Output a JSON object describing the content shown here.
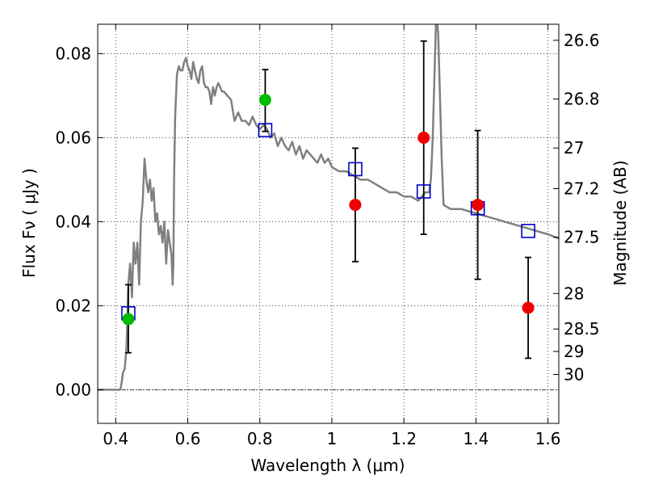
{
  "chart_data": {
    "type": "scatter",
    "xlabel": "Wavelength  λ (μm)",
    "ylabel": "Flux  Fν ( μJy )",
    "y2label": "Magnitude (AB)",
    "xlim": [
      0.35,
      1.63
    ],
    "ylim": [
      -0.008,
      0.087
    ],
    "grid": true,
    "x_ticks": [
      {
        "value": 0.4,
        "label": "0.4"
      },
      {
        "value": 0.6,
        "label": "0.6"
      },
      {
        "value": 0.8,
        "label": "0.8"
      },
      {
        "value": 1.0,
        "label": "1"
      },
      {
        "value": 1.2,
        "label": "1.2"
      },
      {
        "value": 1.4,
        "label": "1.4"
      },
      {
        "value": 1.6,
        "label": "1.6"
      }
    ],
    "y_ticks": [
      {
        "value": 0.0,
        "label": "0.00"
      },
      {
        "value": 0.02,
        "label": "0.02"
      },
      {
        "value": 0.04,
        "label": "0.04"
      },
      {
        "value": 0.06,
        "label": "0.06"
      },
      {
        "value": 0.08,
        "label": "0.08"
      }
    ],
    "mag_ticks": [
      {
        "mag": 26.6,
        "label": "26.6"
      },
      {
        "mag": 26.8,
        "label": "26.8"
      },
      {
        "mag": 27.0,
        "label": "27"
      },
      {
        "mag": 27.2,
        "label": "27.2"
      },
      {
        "mag": 27.5,
        "label": "27.5"
      },
      {
        "mag": 28.0,
        "label": "28"
      },
      {
        "mag": 28.5,
        "label": "28.5"
      },
      {
        "mag": 29.0,
        "label": "29"
      },
      {
        "mag": 30.0,
        "label": "30"
      }
    ],
    "zero_line": 0,
    "colors": {
      "template": "#808080",
      "model": "#0000cc",
      "green": "#00bb00",
      "red": "#ee0000",
      "error": "#000000"
    },
    "template": {
      "x": [
        0.35,
        0.37,
        0.39,
        0.405,
        0.413,
        0.417,
        0.42,
        0.425,
        0.43,
        0.435,
        0.44,
        0.445,
        0.45,
        0.455,
        0.46,
        0.465,
        0.47,
        0.475,
        0.48,
        0.485,
        0.49,
        0.495,
        0.5,
        0.505,
        0.51,
        0.515,
        0.52,
        0.525,
        0.53,
        0.535,
        0.54,
        0.545,
        0.55,
        0.555,
        0.558,
        0.56,
        0.562,
        0.565,
        0.57,
        0.575,
        0.58,
        0.585,
        0.59,
        0.595,
        0.6,
        0.605,
        0.61,
        0.615,
        0.62,
        0.625,
        0.63,
        0.635,
        0.64,
        0.645,
        0.65,
        0.655,
        0.66,
        0.665,
        0.67,
        0.675,
        0.68,
        0.685,
        0.69,
        0.695,
        0.7,
        0.71,
        0.72,
        0.73,
        0.74,
        0.75,
        0.76,
        0.77,
        0.78,
        0.79,
        0.8,
        0.81,
        0.82,
        0.83,
        0.84,
        0.85,
        0.86,
        0.87,
        0.88,
        0.89,
        0.9,
        0.91,
        0.92,
        0.93,
        0.94,
        0.95,
        0.96,
        0.97,
        0.98,
        0.99,
        1.0,
        1.02,
        1.04,
        1.06,
        1.08,
        1.1,
        1.12,
        1.14,
        1.16,
        1.18,
        1.2,
        1.22,
        1.24,
        1.26,
        1.27,
        1.275,
        1.28,
        1.285,
        1.29,
        1.295,
        1.3,
        1.305,
        1.31,
        1.33,
        1.36,
        1.4,
        1.44,
        1.48,
        1.52,
        1.56,
        1.6,
        1.63
      ],
      "y": [
        0.0,
        0.0,
        0.0,
        0.0,
        0.0,
        0.002,
        0.004,
        0.005,
        0.01,
        0.025,
        0.03,
        0.022,
        0.035,
        0.03,
        0.035,
        0.025,
        0.04,
        0.045,
        0.055,
        0.05,
        0.047,
        0.05,
        0.045,
        0.048,
        0.04,
        0.042,
        0.037,
        0.039,
        0.035,
        0.04,
        0.03,
        0.038,
        0.035,
        0.032,
        0.025,
        0.03,
        0.05,
        0.065,
        0.075,
        0.077,
        0.076,
        0.076,
        0.078,
        0.079,
        0.077,
        0.076,
        0.074,
        0.078,
        0.076,
        0.074,
        0.073,
        0.076,
        0.077,
        0.073,
        0.072,
        0.072,
        0.071,
        0.068,
        0.072,
        0.07,
        0.072,
        0.073,
        0.072,
        0.071,
        0.071,
        0.07,
        0.069,
        0.064,
        0.066,
        0.064,
        0.064,
        0.063,
        0.065,
        0.063,
        0.062,
        0.063,
        0.062,
        0.06,
        0.061,
        0.058,
        0.06,
        0.058,
        0.057,
        0.059,
        0.056,
        0.058,
        0.055,
        0.057,
        0.056,
        0.055,
        0.054,
        0.056,
        0.054,
        0.055,
        0.053,
        0.052,
        0.052,
        0.051,
        0.05,
        0.05,
        0.049,
        0.048,
        0.047,
        0.047,
        0.046,
        0.046,
        0.045,
        0.047,
        0.047,
        0.05,
        0.06,
        0.075,
        0.09,
        0.085,
        0.07,
        0.055,
        0.044,
        0.043,
        0.043,
        0.042,
        0.041,
        0.04,
        0.039,
        0.038,
        0.037,
        0.036
      ]
    },
    "series": [
      {
        "kind": "model",
        "x": [
          0.435,
          0.815,
          1.065,
          1.255,
          1.405,
          1.545
        ],
        "y": [
          0.0182,
          0.0618,
          0.0525,
          0.0472,
          0.0432,
          0.0378
        ]
      },
      {
        "kind": "green",
        "x": [
          0.435,
          0.815
        ],
        "y": [
          0.0168,
          0.069
        ],
        "err_low": [
          0.0088,
          0.0615
        ],
        "err_high": [
          0.025,
          0.0762
        ]
      },
      {
        "kind": "red",
        "x": [
          1.065,
          1.255,
          1.405,
          1.545
        ],
        "y": [
          0.044,
          0.06,
          0.044,
          0.0195
        ],
        "err_low": [
          0.0305,
          0.037,
          0.0263,
          0.0075
        ],
        "err_high": [
          0.0575,
          0.083,
          0.0617,
          0.0315
        ]
      }
    ]
  }
}
